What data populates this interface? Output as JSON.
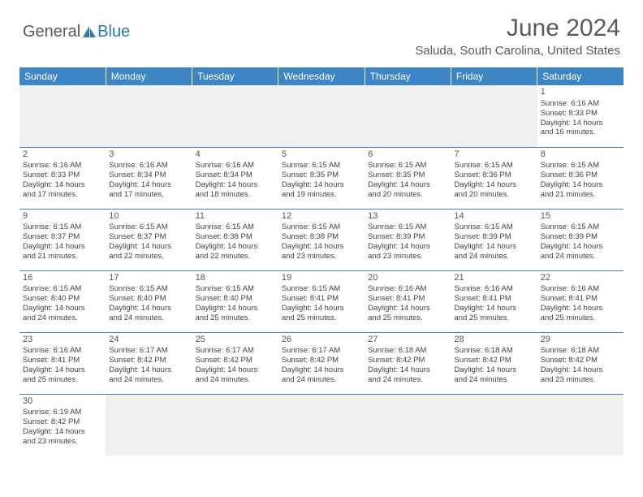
{
  "logo": {
    "text1": "General",
    "text2": "Blue"
  },
  "title": "June 2024",
  "location": "Saluda, South Carolina, United States",
  "header_color": "#3d86c6",
  "weekdays": [
    "Sunday",
    "Monday",
    "Tuesday",
    "Wednesday",
    "Thursday",
    "Friday",
    "Saturday"
  ],
  "first_day_index": 6,
  "days": [
    {
      "n": 1,
      "sunrise": "6:16 AM",
      "sunset": "8:33 PM",
      "dh": 14,
      "dm": 16
    },
    {
      "n": 2,
      "sunrise": "6:16 AM",
      "sunset": "8:33 PM",
      "dh": 14,
      "dm": 17
    },
    {
      "n": 3,
      "sunrise": "6:16 AM",
      "sunset": "8:34 PM",
      "dh": 14,
      "dm": 17
    },
    {
      "n": 4,
      "sunrise": "6:16 AM",
      "sunset": "8:34 PM",
      "dh": 14,
      "dm": 18
    },
    {
      "n": 5,
      "sunrise": "6:15 AM",
      "sunset": "8:35 PM",
      "dh": 14,
      "dm": 19
    },
    {
      "n": 6,
      "sunrise": "6:15 AM",
      "sunset": "8:35 PM",
      "dh": 14,
      "dm": 20
    },
    {
      "n": 7,
      "sunrise": "6:15 AM",
      "sunset": "8:36 PM",
      "dh": 14,
      "dm": 20
    },
    {
      "n": 8,
      "sunrise": "6:15 AM",
      "sunset": "8:36 PM",
      "dh": 14,
      "dm": 21
    },
    {
      "n": 9,
      "sunrise": "6:15 AM",
      "sunset": "8:37 PM",
      "dh": 14,
      "dm": 21
    },
    {
      "n": 10,
      "sunrise": "6:15 AM",
      "sunset": "8:37 PM",
      "dh": 14,
      "dm": 22
    },
    {
      "n": 11,
      "sunrise": "6:15 AM",
      "sunset": "8:38 PM",
      "dh": 14,
      "dm": 22
    },
    {
      "n": 12,
      "sunrise": "6:15 AM",
      "sunset": "8:38 PM",
      "dh": 14,
      "dm": 23
    },
    {
      "n": 13,
      "sunrise": "6:15 AM",
      "sunset": "8:39 PM",
      "dh": 14,
      "dm": 23
    },
    {
      "n": 14,
      "sunrise": "6:15 AM",
      "sunset": "8:39 PM",
      "dh": 14,
      "dm": 24
    },
    {
      "n": 15,
      "sunrise": "6:15 AM",
      "sunset": "8:39 PM",
      "dh": 14,
      "dm": 24
    },
    {
      "n": 16,
      "sunrise": "6:15 AM",
      "sunset": "8:40 PM",
      "dh": 14,
      "dm": 24
    },
    {
      "n": 17,
      "sunrise": "6:15 AM",
      "sunset": "8:40 PM",
      "dh": 14,
      "dm": 24
    },
    {
      "n": 18,
      "sunrise": "6:15 AM",
      "sunset": "8:40 PM",
      "dh": 14,
      "dm": 25
    },
    {
      "n": 19,
      "sunrise": "6:15 AM",
      "sunset": "8:41 PM",
      "dh": 14,
      "dm": 25
    },
    {
      "n": 20,
      "sunrise": "6:16 AM",
      "sunset": "8:41 PM",
      "dh": 14,
      "dm": 25
    },
    {
      "n": 21,
      "sunrise": "6:16 AM",
      "sunset": "8:41 PM",
      "dh": 14,
      "dm": 25
    },
    {
      "n": 22,
      "sunrise": "6:16 AM",
      "sunset": "8:41 PM",
      "dh": 14,
      "dm": 25
    },
    {
      "n": 23,
      "sunrise": "6:16 AM",
      "sunset": "8:41 PM",
      "dh": 14,
      "dm": 25
    },
    {
      "n": 24,
      "sunrise": "6:17 AM",
      "sunset": "8:42 PM",
      "dh": 14,
      "dm": 24
    },
    {
      "n": 25,
      "sunrise": "6:17 AM",
      "sunset": "8:42 PM",
      "dh": 14,
      "dm": 24
    },
    {
      "n": 26,
      "sunrise": "6:17 AM",
      "sunset": "8:42 PM",
      "dh": 14,
      "dm": 24
    },
    {
      "n": 27,
      "sunrise": "6:18 AM",
      "sunset": "8:42 PM",
      "dh": 14,
      "dm": 24
    },
    {
      "n": 28,
      "sunrise": "6:18 AM",
      "sunset": "8:42 PM",
      "dh": 14,
      "dm": 24
    },
    {
      "n": 29,
      "sunrise": "6:18 AM",
      "sunset": "8:42 PM",
      "dh": 14,
      "dm": 23
    },
    {
      "n": 30,
      "sunrise": "6:19 AM",
      "sunset": "8:42 PM",
      "dh": 14,
      "dm": 23
    }
  ],
  "labels": {
    "sunrise": "Sunrise:",
    "sunset": "Sunset:",
    "daylight": "Daylight:",
    "hours": "hours",
    "and": "and",
    "minutes": "minutes."
  }
}
